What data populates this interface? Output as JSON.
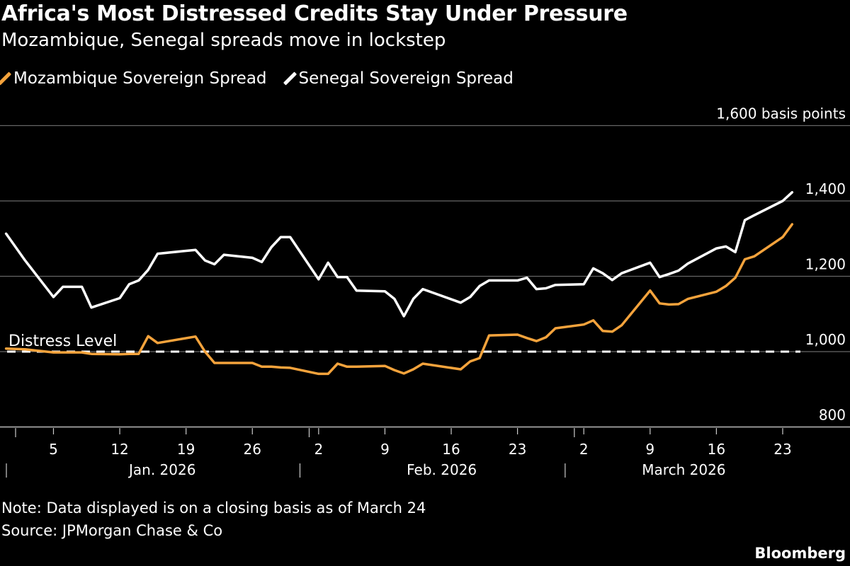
{
  "title": "Africa's Most Distressed Credits Stay Under Pressure",
  "subtitle": "Mozambique, Senegal spreads move in lockstep",
  "note": "Note: Data displayed is on a closing basis as of March 24",
  "source": "Source: JPMorgan Chase & Co",
  "brand": "Bloomberg",
  "chart_data": {
    "type": "line",
    "title": "Africa's Most Distressed Credits Stay Under Pressure",
    "ylabel": "",
    "y_unit_label": "1,600 basis points",
    "ylim": [
      800,
      1600
    ],
    "yticks": [
      800,
      1000,
      1200,
      1400,
      1600
    ],
    "ytick_labels": [
      "800",
      "1,000",
      "1,200",
      "1,400",
      "1,600 basis points"
    ],
    "grid": true,
    "legend_position": "top-left",
    "x_day_ticks": [
      {
        "date": "2026-01-05",
        "label": "5"
      },
      {
        "date": "2026-01-12",
        "label": "12"
      },
      {
        "date": "2026-01-19",
        "label": "19"
      },
      {
        "date": "2026-01-26",
        "label": "26"
      },
      {
        "date": "2026-02-02",
        "label": "2"
      },
      {
        "date": "2026-02-09",
        "label": "9"
      },
      {
        "date": "2026-02-16",
        "label": "16"
      },
      {
        "date": "2026-02-23",
        "label": "23"
      },
      {
        "date": "2026-03-02",
        "label": "2"
      },
      {
        "date": "2026-03-09",
        "label": "9"
      },
      {
        "date": "2026-03-16",
        "label": "16"
      },
      {
        "date": "2026-03-23",
        "label": "23"
      }
    ],
    "x_month_labels": [
      {
        "start": "2026-01-01",
        "label": "Jan. 2026"
      },
      {
        "start": "2026-02-01",
        "label": "Feb. 2026"
      },
      {
        "start": "2026-03-01",
        "label": "March 2026"
      }
    ],
    "reference_line": {
      "value": 1000,
      "label": "Distress Level",
      "style": "dashed",
      "color": "#ffffff"
    },
    "x": [
      "2025-12-31",
      "2026-01-02",
      "2026-01-05",
      "2026-01-06",
      "2026-01-08",
      "2026-01-09",
      "2026-01-12",
      "2026-01-13",
      "2026-01-14",
      "2026-01-15",
      "2026-01-16",
      "2026-01-20",
      "2026-01-21",
      "2026-01-22",
      "2026-01-23",
      "2026-01-26",
      "2026-01-27",
      "2026-01-28",
      "2026-01-29",
      "2026-01-30",
      "2026-02-02",
      "2026-02-03",
      "2026-02-04",
      "2026-02-05",
      "2026-02-06",
      "2026-02-09",
      "2026-02-10",
      "2026-02-11",
      "2026-02-12",
      "2026-02-13",
      "2026-02-17",
      "2026-02-18",
      "2026-02-19",
      "2026-02-20",
      "2026-02-23",
      "2026-02-24",
      "2026-02-25",
      "2026-02-26",
      "2026-02-27",
      "2026-03-02",
      "2026-03-03",
      "2026-03-04",
      "2026-03-05",
      "2026-03-06",
      "2026-03-09",
      "2026-03-10",
      "2026-03-11",
      "2026-03-12",
      "2026-03-13",
      "2026-03-16",
      "2026-03-17",
      "2026-03-18",
      "2026-03-19",
      "2026-03-20",
      "2026-03-23",
      "2026-03-24"
    ],
    "series": [
      {
        "name": "Mozambique Sovereign Spread",
        "color": "#f4a33c",
        "values": [
          1008,
          1006,
          998,
          998,
          998,
          994,
          993,
          994,
          994,
          1041,
          1023,
          1040,
          1000,
          970,
          970,
          970,
          960,
          960,
          958,
          957,
          941,
          941,
          968,
          960,
          960,
          962,
          951,
          942,
          953,
          968,
          953,
          974,
          983,
          1043,
          1045,
          1036,
          1028,
          1038,
          1062,
          1072,
          1083,
          1055,
          1053,
          1070,
          1162,
          1128,
          1125,
          1126,
          1140,
          1159,
          1174,
          1196,
          1245,
          1253,
          1304,
          1338
        ]
      },
      {
        "name": "Senegal Sovereign Spread",
        "color": "#ffffff",
        "values": [
          1313,
          1242,
          1145,
          1172,
          1172,
          1117,
          1142,
          1179,
          1189,
          1217,
          1260,
          1270,
          1242,
          1232,
          1257,
          1249,
          1238,
          1277,
          1304,
          1304,
          1192,
          1236,
          1198,
          1198,
          1162,
          1160,
          1140,
          1094,
          1140,
          1166,
          1130,
          1145,
          1174,
          1189,
          1189,
          1196,
          1166,
          1168,
          1177,
          1179,
          1221,
          1208,
          1190,
          1208,
          1236,
          1198,
          1206,
          1215,
          1234,
          1274,
          1279,
          1264,
          1349,
          1362,
          1400,
          1423
        ]
      }
    ]
  }
}
